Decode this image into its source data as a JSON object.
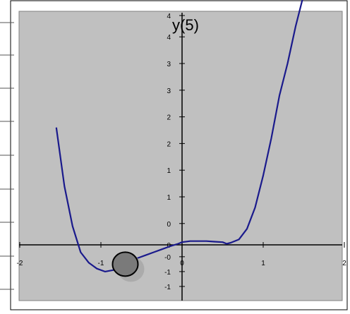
{
  "colors": {
    "plot_background": "#c0c0c0",
    "curve": "#1a1a8c",
    "axis": "#000000",
    "ball_fill": "#7a7a7a",
    "ball_shadow": "#a8a8a8"
  },
  "chart_data": {
    "type": "line",
    "title": "y(5)",
    "xlabel": "",
    "ylabel": "",
    "xlim": [
      -2,
      2
    ],
    "ylim": [
      -1.9,
      4.3
    ],
    "grid": false,
    "legend": "none",
    "x_ticks": [
      {
        "value": -2,
        "label": "-2"
      },
      {
        "value": -1,
        "label": "-1"
      },
      {
        "value": 0,
        "label": "0"
      },
      {
        "value": 1,
        "label": "1"
      },
      {
        "value": 2,
        "label": "2"
      }
    ],
    "y_ticks": [
      {
        "value": 4.3,
        "label": "4"
      },
      {
        "value": 3.9,
        "label": "4"
      },
      {
        "value": 3.4,
        "label": "3"
      },
      {
        "value": 2.9,
        "label": "3"
      },
      {
        "value": 2.4,
        "label": "2"
      },
      {
        "value": 1.9,
        "label": "2"
      },
      {
        "value": 1.4,
        "label": "1"
      },
      {
        "value": 0.9,
        "label": "1"
      },
      {
        "value": 0.4,
        "label": "0"
      },
      {
        "value": 0.0,
        "label": "0"
      },
      {
        "value": -0.4,
        "label": "-0"
      },
      {
        "value": -0.9,
        "label": "-1"
      },
      {
        "value": -1.4,
        "label": "-1"
      }
    ],
    "series": [
      {
        "x": [
          -1.55,
          -1.45,
          -1.35,
          -1.25,
          -1.15,
          -1.05,
          -0.95,
          -0.85,
          -0.75,
          -0.65,
          -0.55,
          -0.45,
          -0.35,
          -0.25,
          -0.15,
          -0.05,
          0.0,
          0.1,
          0.2,
          0.3,
          0.4,
          0.5,
          0.55,
          0.6,
          0.7,
          0.8,
          0.9,
          1.0,
          1.1,
          1.2,
          1.3,
          1.4,
          1.5
        ],
        "y": [
          2.2,
          1.1,
          0.35,
          -0.25,
          -0.6,
          -0.8,
          -0.9,
          -0.85,
          -0.75,
          -0.6,
          -0.45,
          -0.35,
          -0.25,
          -0.15,
          -0.05,
          0.02,
          0.05,
          0.07,
          0.07,
          0.07,
          0.06,
          0.05,
          0.02,
          0.04,
          0.1,
          0.3,
          0.7,
          1.3,
          2.0,
          2.8,
          3.4,
          4.1,
          4.7
        ]
      }
    ],
    "marker": {
      "x": -0.7,
      "y": -0.65,
      "shape": "ball"
    }
  }
}
